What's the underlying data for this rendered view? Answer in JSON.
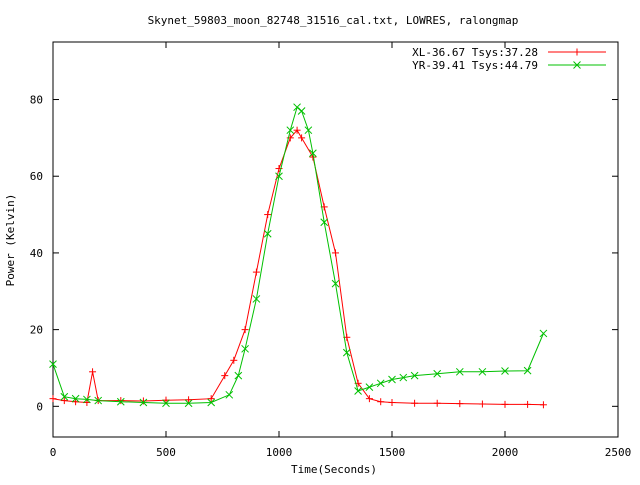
{
  "chart_data": {
    "type": "line",
    "title": "Skynet_59803_moon_82748_31516_cal.txt, LOWRES, ralongmap",
    "xlabel": "Time(Seconds)",
    "ylabel": "Power (Kelvin)",
    "xlim": [
      0,
      2500
    ],
    "ylim": [
      -8,
      95
    ],
    "x_ticks": [
      0,
      500,
      1000,
      1500,
      2000,
      2500
    ],
    "x_tick_labels": [
      "0",
      "500",
      "1000",
      "1500",
      "2000",
      "2500"
    ],
    "y_ticks": [
      0,
      20,
      40,
      60,
      80
    ],
    "y_tick_labels": [
      "0",
      "20",
      "40",
      "60",
      "80"
    ],
    "grid": false,
    "legend_position": "top-right",
    "series": [
      {
        "name": "XL-36.67 Tsys:37.28",
        "color": "#ff0000",
        "marker": "plus",
        "x": [
          0,
          50,
          100,
          150,
          175,
          200,
          300,
          400,
          500,
          600,
          700,
          760,
          800,
          850,
          900,
          950,
          1000,
          1050,
          1080,
          1100,
          1150,
          1200,
          1250,
          1300,
          1350,
          1400,
          1450,
          1500,
          1600,
          1700,
          1800,
          1900,
          2000,
          2100,
          2170
        ],
        "y": [
          2,
          1.5,
          1.2,
          1,
          9,
          1.5,
          1.5,
          1.4,
          1.6,
          1.7,
          2,
          8,
          12,
          20,
          35,
          50,
          62,
          70,
          72,
          70,
          65,
          52,
          40,
          18,
          6,
          2,
          1.2,
          1,
          0.8,
          0.8,
          0.7,
          0.6,
          0.5,
          0.5,
          0.4
        ]
      },
      {
        "name": "YR-39.41 Tsys:44.79",
        "color": "#00c000",
        "marker": "cross",
        "x": [
          0,
          50,
          100,
          150,
          200,
          300,
          400,
          500,
          600,
          700,
          780,
          820,
          850,
          900,
          950,
          1000,
          1050,
          1080,
          1100,
          1130,
          1150,
          1200,
          1250,
          1300,
          1350,
          1400,
          1450,
          1500,
          1550,
          1600,
          1700,
          1800,
          1900,
          2000,
          2100,
          2170
        ],
        "y": [
          11,
          2.5,
          2,
          1.8,
          1.5,
          1.2,
          1,
          0.8,
          0.8,
          1,
          3,
          8,
          15,
          28,
          45,
          60,
          72,
          78,
          77,
          72,
          66,
          48,
          32,
          14,
          4,
          5,
          6,
          7,
          7.5,
          8,
          8.5,
          9,
          9,
          9.2,
          9.3,
          19
        ]
      }
    ]
  }
}
